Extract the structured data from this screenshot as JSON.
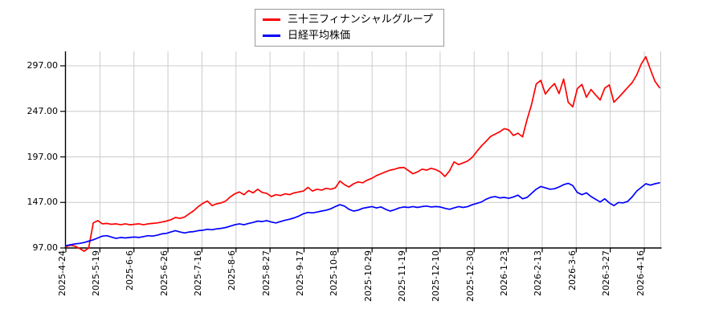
{
  "legend": {
    "items": [
      {
        "label": "三十三フィナンシャルグループ",
        "color": "#ff0000"
      },
      {
        "label": "日経平均株価",
        "color": "#0000ff"
      }
    ]
  },
  "colors": {
    "background": "#ffffff",
    "grid": "#cccccc",
    "axis": "#000000",
    "text": "#000000",
    "legend_border": "#999999"
  },
  "chart_data": {
    "type": "line",
    "title": "",
    "xlabel": "",
    "ylabel": "",
    "grid": true,
    "legend_position": "top-center",
    "ylim": [
      97,
      297
    ],
    "y_ticks": [
      297,
      247,
      197,
      147,
      97
    ],
    "y_tick_labels": [
      "297.00",
      "247.00",
      "197.00",
      "147.00",
      "97.00"
    ],
    "x_tick_labels": [
      "2025-4-24",
      "2025-5-19",
      "2025-6-6",
      "2025-6-26",
      "2025-7-16",
      "2025-8-6",
      "2025-8-27",
      "2025-9-17",
      "2025-10-8",
      "2025-10-29",
      "2025-11-19",
      "2025-12-10",
      "2025-12-30",
      "2026-1-23",
      "2026-2-13",
      "2026-3-6",
      "2026-3-27",
      "2026-4-16"
    ],
    "series": [
      {
        "name": "三十三フィナンシャルグループ",
        "color": "#ff0000",
        "values": [
          98.5,
          100,
          99,
          96.5,
          93.5,
          97,
          124.5,
          127,
          123.5,
          124,
          123,
          123.5,
          122.5,
          123.5,
          122.5,
          123,
          123.5,
          122.5,
          123.5,
          124,
          124.5,
          125.5,
          126.5,
          128,
          130.5,
          129.5,
          131,
          134.5,
          138,
          142.5,
          146,
          148.5,
          143.5,
          145.5,
          146.5,
          148.5,
          153,
          156.5,
          158.5,
          155.5,
          160,
          157.5,
          161.5,
          158,
          157,
          153.5,
          155.5,
          154.5,
          156.5,
          155.5,
          157.5,
          158.5,
          159.5,
          163.5,
          159.5,
          161.5,
          160.5,
          162.5,
          161.5,
          163,
          170.5,
          166.5,
          164,
          167.5,
          169.5,
          168.5,
          171.5,
          173.5,
          176.5,
          178.5,
          180.5,
          182.5,
          183.5,
          185,
          185.5,
          182,
          178.5,
          180.5,
          183.5,
          182.5,
          184.5,
          183,
          180.5,
          175.5,
          181.5,
          191.5,
          188.5,
          190.5,
          192.5,
          196.5,
          203,
          209,
          214,
          219.5,
          222,
          224.5,
          228,
          226.5,
          220.5,
          223,
          219,
          238,
          255,
          277,
          281,
          266,
          272.5,
          277.5,
          266.5,
          282.5,
          257,
          252,
          272,
          276.5,
          262.5,
          271,
          265,
          259.5,
          272.5,
          276,
          257,
          262,
          267.5,
          273,
          278.5,
          287,
          299,
          307,
          293,
          280,
          273
        ]
      },
      {
        "name": "日経平均株価",
        "color": "#0000ff",
        "values": [
          99.5,
          100.5,
          101.5,
          102,
          103,
          104.5,
          106,
          108,
          110,
          110.5,
          109,
          107.5,
          108.5,
          108,
          108.5,
          109,
          108.5,
          109.5,
          110.5,
          110,
          111,
          112.5,
          113,
          114.5,
          116,
          114.5,
          113.5,
          114.5,
          115,
          116,
          116.5,
          117.5,
          117,
          118,
          118.5,
          119.5,
          121,
          122.5,
          123.5,
          122.5,
          124,
          125,
          126.5,
          126,
          127,
          125.5,
          124.5,
          126,
          127.5,
          128.5,
          130,
          132,
          134.5,
          136,
          135.5,
          136.5,
          137.5,
          138.5,
          140,
          142.5,
          144.5,
          143,
          139.5,
          137.5,
          138.5,
          140.5,
          141.5,
          142.5,
          141,
          142,
          139.5,
          137.5,
          139,
          141,
          142,
          141.5,
          142.5,
          141.5,
          142.5,
          143,
          142,
          142.5,
          142,
          140.5,
          139.5,
          141,
          142.5,
          141.5,
          142.5,
          144.5,
          146,
          147.5,
          150.5,
          152.5,
          153.5,
          152,
          152.5,
          151.5,
          153,
          155,
          151,
          152.5,
          157,
          161.5,
          164.5,
          163,
          161.5,
          162,
          164,
          166.5,
          168,
          165.5,
          158,
          155.5,
          157.5,
          153.5,
          150.5,
          147.5,
          151,
          146.5,
          143.5,
          147,
          146.5,
          148,
          153,
          159.5,
          163.5,
          167.5,
          166,
          167.5,
          168.5
        ]
      }
    ]
  }
}
